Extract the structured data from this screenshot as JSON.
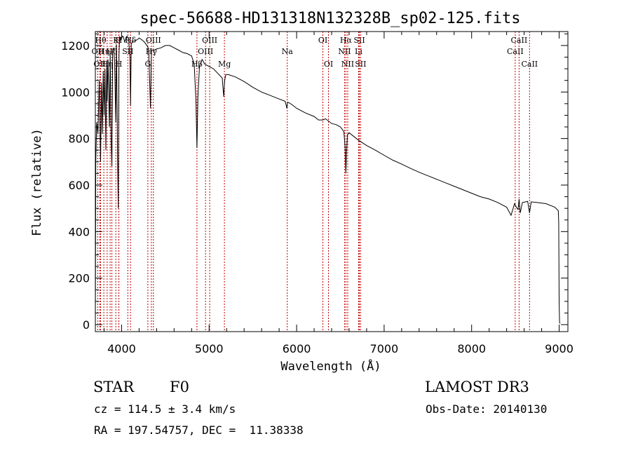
{
  "chart_data": {
    "type": "line",
    "title": "spec-56688-HD131318N132328B_sp02-125.fits",
    "xlabel": "Wavelength (Å)",
    "ylabel": "Flux (relative)",
    "xlim": [
      3700,
      9100
    ],
    "ylim": [
      -30,
      1260
    ],
    "xticks": [
      4000,
      5000,
      6000,
      7000,
      8000,
      9000
    ],
    "yticks": [
      0,
      200,
      400,
      600,
      800,
      1000,
      1200
    ],
    "series": [
      {
        "name": "flux",
        "x": [
          3700,
          3705,
          3715,
          3730,
          3745,
          3760,
          3770,
          3780,
          3790,
          3800,
          3810,
          3820,
          3830,
          3835,
          3845,
          3860,
          3870,
          3880,
          3889,
          3898,
          3910,
          3920,
          3933,
          3942,
          3955,
          3962,
          3970,
          3978,
          3990,
          4000,
          4010,
          4020,
          4035,
          4050,
          4060,
          4080,
          4095,
          4102,
          4110,
          4125,
          4150,
          4180,
          4200,
          4230,
          4260,
          4290,
          4310,
          4330,
          4340,
          4350,
          4370,
          4400,
          4450,
          4500,
          4550,
          4600,
          4650,
          4700,
          4750,
          4800,
          4830,
          4850,
          4861,
          4872,
          4890,
          4920,
          4950,
          5000,
          5050,
          5100,
          5150,
          5167,
          5172,
          5178,
          5190,
          5220,
          5300,
          5400,
          5500,
          5600,
          5700,
          5800,
          5870,
          5889,
          5896,
          5910,
          5950,
          6000,
          6100,
          6200,
          6250,
          6300,
          6330,
          6400,
          6450,
          6500,
          6540,
          6555,
          6563,
          6570,
          6580,
          6600,
          6650,
          6700,
          6800,
          6900,
          7000,
          7100,
          7200,
          7300,
          7400,
          7500,
          7600,
          7700,
          7800,
          7900,
          8000,
          8100,
          8200,
          8300,
          8400,
          8450,
          8490,
          8498,
          8510,
          8530,
          8542,
          8555,
          8580,
          8640,
          8662,
          8680,
          8750,
          8850,
          8950,
          8990,
          8995,
          9000,
          9005,
          9010
        ],
        "values": [
          -20,
          700,
          870,
          820,
          1050,
          700,
          1040,
          820,
          1090,
          900,
          1100,
          750,
          1120,
          960,
          1140,
          850,
          1170,
          790,
          680,
          1180,
          1190,
          1130,
          870,
          1205,
          700,
          500,
          1160,
          1240,
          1220,
          1230,
          1240,
          1238,
          1215,
          1232,
          1240,
          1232,
          1150,
          940,
          1205,
          1218,
          1220,
          1225,
          1232,
          1225,
          1215,
          1200,
          1185,
          930,
          1175,
          1180,
          1180,
          1185,
          1190,
          1200,
          1200,
          1190,
          1180,
          1170,
          1165,
          1155,
          1120,
          960,
          760,
          980,
          1110,
          1140,
          1120,
          1110,
          1100,
          1080,
          1060,
          980,
          1015,
          1050,
          1075,
          1075,
          1065,
          1045,
          1020,
          1000,
          985,
          970,
          960,
          930,
          955,
          955,
          945,
          930,
          910,
          895,
          880,
          880,
          885,
          865,
          860,
          850,
          830,
          760,
          650,
          730,
          815,
          825,
          810,
          795,
          770,
          750,
          728,
          707,
          690,
          672,
          655,
          640,
          625,
          610,
          595,
          580,
          565,
          550,
          540,
          525,
          505,
          470,
          520,
          515,
          505,
          495,
          540,
          480,
          525,
          530,
          480,
          528,
          525,
          520,
          505,
          490,
          440,
          100,
          10,
          5
        ]
      }
    ],
    "line_markers": [
      {
        "wavelength": 3727,
        "label": "OII",
        "row": 2
      },
      {
        "wavelength": 3750,
        "label": "OII",
        "row": 3
      },
      {
        "wavelength": 3760,
        "label": "Hθ",
        "row": 1
      },
      {
        "wavelength": 3797,
        "label": "Hη",
        "row": 2
      },
      {
        "wavelength": 3835,
        "label": "Hη",
        "row": 3
      },
      {
        "wavelength": 3869,
        "label": "",
        "row": 0
      },
      {
        "wavelength": 3889,
        "label": "Hδ",
        "row": 2
      },
      {
        "wavelength": 3934,
        "label": "K",
        "row": 1
      },
      {
        "wavelength": 3968,
        "label": "H",
        "row": 1
      },
      {
        "wavelength": 3969,
        "label": "H",
        "row": 3
      },
      {
        "wavelength": 4071,
        "label": "SII",
        "row": 2
      },
      {
        "wavelength": 4102,
        "label": "Hδ",
        "row": 1
      },
      {
        "wavelength": 4300,
        "label": "G",
        "row": 3
      },
      {
        "wavelength": 4340,
        "label": "Hγ",
        "row": 2
      },
      {
        "wavelength": 4363,
        "label": "OIII",
        "row": 1
      },
      {
        "wavelength": 4861,
        "label": "Hβ",
        "row": 3
      },
      {
        "wavelength": 4959,
        "label": "OIII",
        "row": 2
      },
      {
        "wavelength": 5007,
        "label": "OIII",
        "row": 1
      },
      {
        "wavelength": 5175,
        "label": "Mg",
        "row": 3
      },
      {
        "wavelength": 5893,
        "label": "Na",
        "row": 2
      },
      {
        "wavelength": 6300,
        "label": "OI",
        "row": 1
      },
      {
        "wavelength": 6364,
        "label": "OI",
        "row": 3
      },
      {
        "wavelength": 6548,
        "label": "NII",
        "row": 2
      },
      {
        "wavelength": 6563,
        "label": "Hα",
        "row": 1
      },
      {
        "wavelength": 6584,
        "label": "NII",
        "row": 3
      },
      {
        "wavelength": 6708,
        "label": "Li",
        "row": 2
      },
      {
        "wavelength": 6717,
        "label": "SII",
        "row": 1
      },
      {
        "wavelength": 6731,
        "label": "SII",
        "row": 3
      },
      {
        "wavelength": 8498,
        "label": "CaII",
        "row": 2
      },
      {
        "wavelength": 8542,
        "label": "CaII",
        "row": 1
      },
      {
        "wavelength": 8662,
        "label": "CaII",
        "row": 3
      }
    ],
    "marker_color": "#c00000"
  },
  "info": {
    "object_class": "STAR",
    "subclass": "F0",
    "redshift": "cz = 114.5 ± 3.4 km/s",
    "coords": "RA = 197.54757, DEC =  11.38338",
    "survey": "LAMOST DR3",
    "obs_date": "Obs-Date: 20140130"
  }
}
